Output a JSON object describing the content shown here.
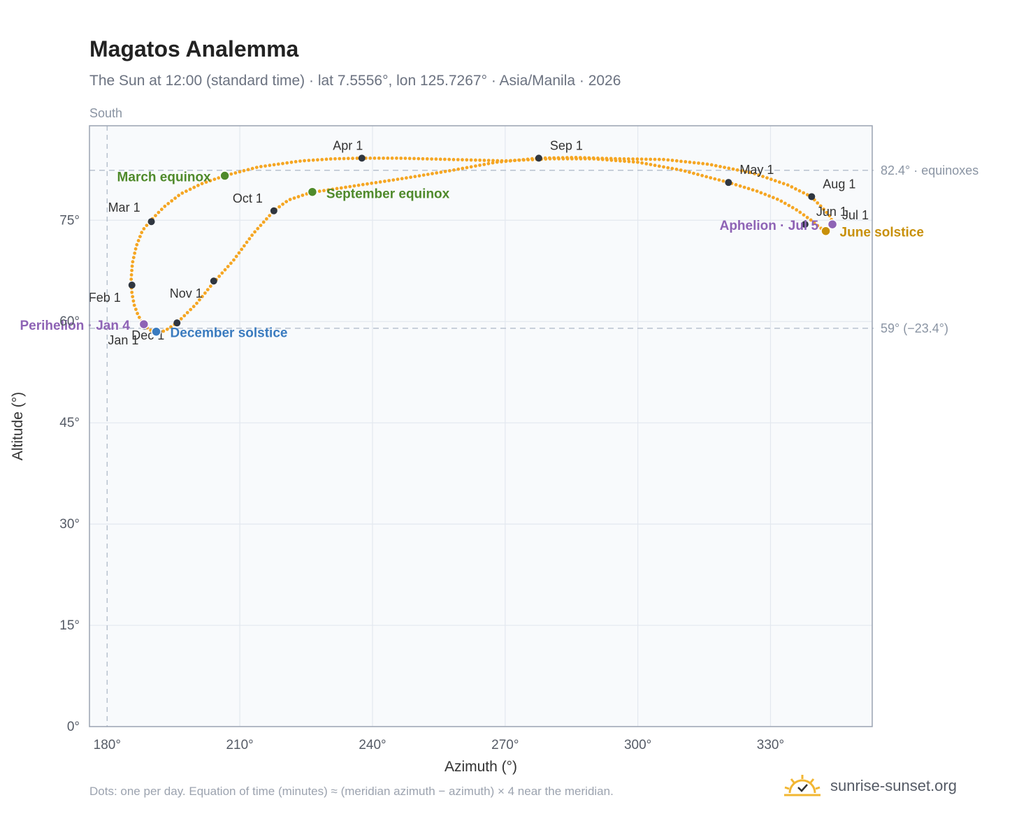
{
  "header": {
    "title": "Magatos Analemma",
    "subtitle": "The Sun at 12:00 (standard time) · lat 7.5556°, lon 125.7267° · Asia/Manila · 2026"
  },
  "footer": {
    "note": "Dots: one per day. Equation of time (minutes) ≈ (meridian azimuth − azimuth) × 4 near the meridian.",
    "brand": "sunrise-sunset.org"
  },
  "chart_data": {
    "type": "scatter",
    "xlabel": "Azimuth (°)",
    "ylabel": "Altitude (°)",
    "xlim": [
      176,
      353
    ],
    "ylim": [
      0,
      89
    ],
    "xticks": [
      180,
      210,
      240,
      270,
      300,
      330
    ],
    "xtick_labels": [
      "180°",
      "210°",
      "240°",
      "270°",
      "300°",
      "330°"
    ],
    "yticks": [
      0,
      15,
      30,
      45,
      60,
      75
    ],
    "ytick_labels": [
      "0°",
      "15°",
      "30°",
      "45°",
      "60°",
      "75°"
    ],
    "grid": true,
    "meridian": {
      "azimuth": 180,
      "label": "South"
    },
    "reference_lines": [
      {
        "altitude": 82.4,
        "label": "82.4° · equinoxes"
      },
      {
        "altitude": 59.0,
        "label": "59° (−23.4°)"
      }
    ],
    "path": [
      [
        188.3,
        59.5
      ],
      [
        187.0,
        60.9
      ],
      [
        186.1,
        62.5
      ],
      [
        185.6,
        64.2
      ],
      [
        185.4,
        66.0
      ],
      [
        185.7,
        68.6
      ],
      [
        186.6,
        71.2
      ],
      [
        188.0,
        73.5
      ],
      [
        189.9,
        75.0
      ],
      [
        192.9,
        77.0
      ],
      [
        196.6,
        78.9
      ],
      [
        201.3,
        80.4
      ],
      [
        206.6,
        81.6
      ],
      [
        214.2,
        82.9
      ],
      [
        224.0,
        83.8
      ],
      [
        231.0,
        84.1
      ],
      [
        237.5,
        84.2
      ],
      [
        246.0,
        84.2
      ],
      [
        258.0,
        84.0
      ],
      [
        270.0,
        83.8
      ],
      [
        280.0,
        84.1
      ],
      [
        290.0,
        84.1
      ],
      [
        300.0,
        83.6
      ],
      [
        310.0,
        82.4
      ],
      [
        320.5,
        80.6
      ],
      [
        327.0,
        79.3
      ],
      [
        332.0,
        78.0
      ],
      [
        336.0,
        76.5
      ],
      [
        339.2,
        75.0
      ],
      [
        341.0,
        74.0
      ],
      [
        342.6,
        73.3
      ],
      [
        344.2,
        74.2
      ],
      [
        343.6,
        75.5
      ],
      [
        341.5,
        77.0
      ],
      [
        339.2,
        78.5
      ],
      [
        334.0,
        80.2
      ],
      [
        326.0,
        82.0
      ],
      [
        316.0,
        83.3
      ],
      [
        306.0,
        84.0
      ],
      [
        296.0,
        84.1
      ],
      [
        286.0,
        84.3
      ],
      [
        277.5,
        84.2
      ],
      [
        268.0,
        83.6
      ],
      [
        258.0,
        82.4
      ],
      [
        248.0,
        81.3
      ],
      [
        238.0,
        80.3
      ],
      [
        226.0,
        79.1
      ],
      [
        221.0,
        78.0
      ],
      [
        217.7,
        76.4
      ],
      [
        213.0,
        73.0
      ],
      [
        208.5,
        69.0
      ],
      [
        204.1,
        65.8
      ],
      [
        200.0,
        62.5
      ],
      [
        195.8,
        59.8
      ],
      [
        193.0,
        58.6
      ],
      [
        191.0,
        58.4
      ],
      [
        189.5,
        58.8
      ],
      [
        188.3,
        59.5
      ]
    ],
    "month_marks": [
      {
        "label": "Jan 1",
        "az": 188.4,
        "alt": 59.3
      },
      {
        "label": "Feb 1",
        "az": 185.6,
        "alt": 65.4
      },
      {
        "label": "Mar 1",
        "az": 190.0,
        "alt": 74.8
      },
      {
        "label": "Apr 1",
        "az": 237.6,
        "alt": 84.2
      },
      {
        "label": "May 1",
        "az": 320.5,
        "alt": 80.6
      },
      {
        "label": "Jun 1",
        "az": 337.8,
        "alt": 74.4
      },
      {
        "label": "Jul 1",
        "az": 344.0,
        "alt": 74.3
      },
      {
        "label": "Aug 1",
        "az": 339.3,
        "alt": 78.5
      },
      {
        "label": "Sep 1",
        "az": 277.6,
        "alt": 84.2
      },
      {
        "label": "Oct 1",
        "az": 217.7,
        "alt": 76.4
      },
      {
        "label": "Nov 1",
        "az": 204.1,
        "alt": 66.0
      },
      {
        "label": "Dec 1",
        "az": 195.8,
        "alt": 59.8
      }
    ],
    "events": [
      {
        "label": "March equinox",
        "az": 206.6,
        "alt": 81.6,
        "color": "#4f8a2b"
      },
      {
        "label": "September equinox",
        "az": 226.4,
        "alt": 79.2,
        "color": "#4f8a2b"
      },
      {
        "label": "June solstice",
        "az": 342.5,
        "alt": 73.4,
        "color": "#c8900a"
      },
      {
        "label": "December solstice",
        "az": 191.1,
        "alt": 58.5,
        "color": "#3a7bbf"
      },
      {
        "label": "Perihelion · Jan 4",
        "az": 188.3,
        "alt": 59.6,
        "color": "#8e63b5"
      },
      {
        "label": "Aphelion · Jul 5",
        "az": 344.0,
        "alt": 74.4,
        "color": "#8e63b5"
      }
    ]
  }
}
